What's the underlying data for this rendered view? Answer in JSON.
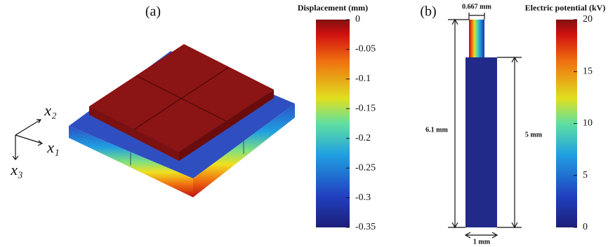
{
  "panel_a": {
    "label": "(a)",
    "axes": [
      "x₂",
      "x₁",
      "x₃"
    ],
    "colorbar": {
      "title": "Displacement (mm)",
      "lim": [
        -0.35,
        0
      ],
      "ticks": [
        0,
        -0.05,
        -0.1,
        -0.15,
        -0.2,
        -0.25,
        -0.3,
        -0.35
      ]
    }
  },
  "panel_b": {
    "label": "(b)",
    "dimensions": {
      "top_width": "0.667 mm",
      "total_height": "6.1 mm",
      "lower_height": "5 mm",
      "bottom_width": "1 mm"
    },
    "colorbar": {
      "title": "Electric potential (kV)",
      "lim": [
        0,
        20
      ],
      "ticks": [
        0,
        5,
        10,
        15,
        20
      ]
    }
  }
}
